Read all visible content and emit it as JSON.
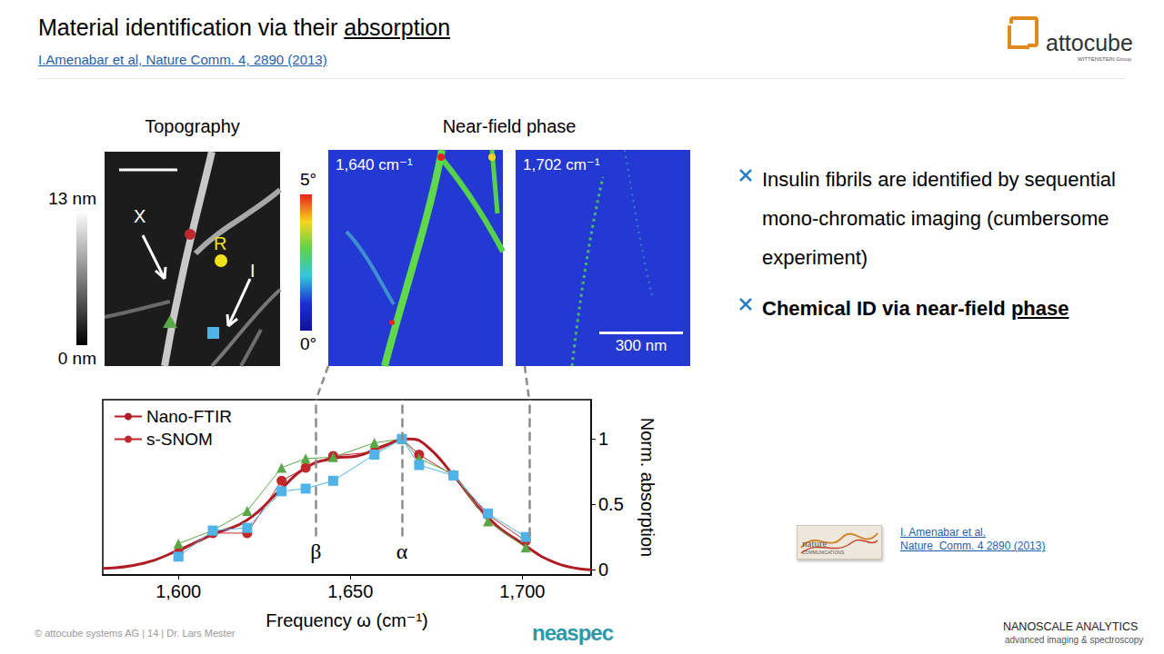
{
  "header": {
    "title": {
      "plain": "Material identification via their ",
      "underlined": "absorption"
    },
    "citation": "I.Amenabar et al, Nature Comm. 4, 2890 (2013)"
  },
  "logo": {
    "name": "attocube",
    "group": "WITTENSTEIN Group"
  },
  "topography": {
    "heading": "Topography",
    "colorbar": {
      "max_label": "13 nm",
      "min_label": "0 nm"
    },
    "labels": [
      "X",
      "R",
      "I"
    ]
  },
  "near_field": {
    "heading": "Near-field phase",
    "colorbar": {
      "max_label": "5°",
      "min_label": "0°"
    },
    "images": [
      {
        "label": "1,640 cm⁻¹",
        "frequency": 1640
      },
      {
        "label": "1,702 cm⁻¹",
        "frequency": 1702,
        "scale_bar": "300 nm"
      }
    ]
  },
  "bullets": [
    {
      "text": "Insulin fibrils are identified by sequential mono-chromatic imaging (cumbersome experiment)",
      "bold": false
    },
    {
      "text": "Chemical ID via near-field ",
      "underlined": "phase",
      "bold": true
    }
  ],
  "reference": {
    "thumbnail": [
      "nature",
      "COMMUNICATIONS"
    ],
    "lines": [
      "I. Amenabar et al.",
      "Nature  Comm. 4 2890 (2013)"
    ]
  },
  "footer": {
    "left": "© attocube systems AG | 14 | Dr. Lars Mester",
    "center": "neaspec",
    "right": [
      "NANOSCALE ANALYTICS",
      "advanced imaging & spectroscopy"
    ]
  },
  "chart_data": {
    "type": "line",
    "x_label": "Frequency ω (cm⁻¹)",
    "y_label": "Norm. absorption",
    "xlim": [
      1578,
      1720
    ],
    "xticks": [
      {
        "value": 1600,
        "label": "1,600"
      },
      {
        "value": 1650,
        "label": "1,650"
      },
      {
        "value": 1700,
        "label": "1,700"
      }
    ],
    "ylim": [
      -0.04,
      1.3
    ],
    "yticks": [
      0,
      0.5,
      1
    ],
    "legend": "upper left",
    "grid": false,
    "annotations": [
      {
        "text": "β",
        "x": 1640
      },
      {
        "text": "α",
        "x": 1665
      }
    ],
    "series": [
      {
        "name": "Nano-FTIR",
        "color": "#b01c24",
        "line_style": "solid",
        "marker": "none",
        "x": [
          1578,
          1590,
          1600,
          1610,
          1620,
          1630,
          1637,
          1645,
          1652,
          1660,
          1667,
          1672,
          1680,
          1690,
          1700,
          1710,
          1720
        ],
        "values": [
          0.01,
          0.05,
          0.15,
          0.27,
          0.38,
          0.62,
          0.78,
          0.85,
          0.87,
          0.95,
          1.0,
          0.95,
          0.72,
          0.4,
          0.2,
          0.05,
          0.0
        ]
      },
      {
        "name": "s-SNOM",
        "color": "#c0282d",
        "line_style": "solid",
        "marker": "circle",
        "x": [
          1600,
          1610,
          1620,
          1630,
          1637,
          1645,
          1657,
          1665,
          1670,
          1680,
          1690,
          1701
        ],
        "values": [
          0.13,
          0.28,
          0.28,
          0.68,
          0.78,
          0.87,
          0.9,
          1.0,
          0.88,
          0.72,
          0.42,
          0.22
        ]
      },
      {
        "name": "s-SNOM",
        "color": "#5aa845",
        "line_style": "solid",
        "marker": "triangle",
        "x": [
          1600,
          1610,
          1620,
          1630,
          1637,
          1645,
          1657,
          1665,
          1670,
          1680,
          1690,
          1701
        ],
        "values": [
          0.2,
          0.3,
          0.45,
          0.78,
          0.85,
          0.86,
          0.97,
          1.0,
          0.85,
          0.73,
          0.37,
          0.17
        ]
      },
      {
        "name": "s-SNOM",
        "color": "#4fb3e8",
        "line_style": "solid",
        "marker": "rect",
        "x": [
          1600,
          1610,
          1620,
          1630,
          1637,
          1645,
          1657,
          1665,
          1670,
          1680,
          1690,
          1701
        ],
        "values": [
          0.1,
          0.3,
          0.32,
          0.6,
          0.62,
          0.68,
          0.88,
          1.0,
          0.8,
          0.72,
          0.43,
          0.25
        ]
      }
    ]
  }
}
